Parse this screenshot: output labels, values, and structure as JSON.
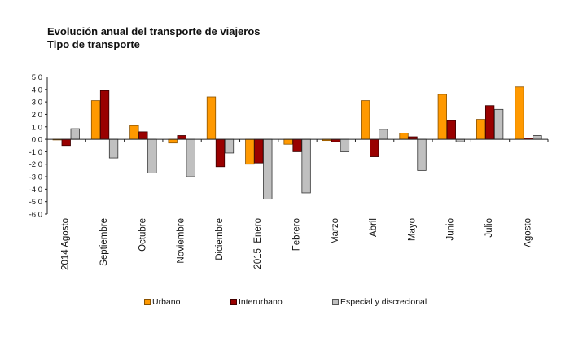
{
  "header": {
    "title": "Evolución anual del transporte de viajeros",
    "subtitle": "Tipo de transporte"
  },
  "chart_data": {
    "type": "bar",
    "title": "Evolución anual del transporte de viajeros",
    "subtitle": "Tipo de transporte",
    "xlabel": "",
    "ylabel": "",
    "ylim": [
      -6.0,
      5.0
    ],
    "yticks": [
      "5,0",
      "4,0",
      "3,0",
      "2,0",
      "1,0",
      "0,0",
      "-1,0",
      "-2,0",
      "-3,0",
      "-4,0",
      "-5,0",
      "-6,0"
    ],
    "ytick_values": [
      5,
      4,
      3,
      2,
      1,
      0,
      -1,
      -2,
      -3,
      -4,
      -5,
      -6
    ],
    "grid": false,
    "legend_position": "bottom",
    "categories": [
      "2014 Agosto",
      "Septiembre",
      "Octubre",
      "Noviembre",
      "Diciembre",
      "2015  Enero",
      "Febrero",
      "Marzo",
      "Abril",
      "Mayo",
      "Junio",
      "Julio",
      "Agosto"
    ],
    "series": [
      {
        "name": "Urbano",
        "color": "#FF9900",
        "values": [
          -0.05,
          3.1,
          1.1,
          -0.3,
          3.4,
          -2.0,
          -0.4,
          -0.1,
          3.1,
          0.5,
          3.6,
          1.6,
          4.2
        ]
      },
      {
        "name": "Interurbano",
        "color": "#990000",
        "values": [
          -0.5,
          3.9,
          0.6,
          0.3,
          -2.2,
          -1.9,
          -1.0,
          -0.2,
          -1.4,
          0.2,
          1.5,
          2.7,
          0.1
        ]
      },
      {
        "name": "Especial y discrecional",
        "color": "#C0C0C0",
        "values": [
          0.85,
          -1.5,
          -2.7,
          -3.0,
          -1.1,
          -4.8,
          -4.3,
          -1.0,
          0.8,
          -2.5,
          -0.2,
          2.4,
          0.3
        ]
      }
    ]
  }
}
